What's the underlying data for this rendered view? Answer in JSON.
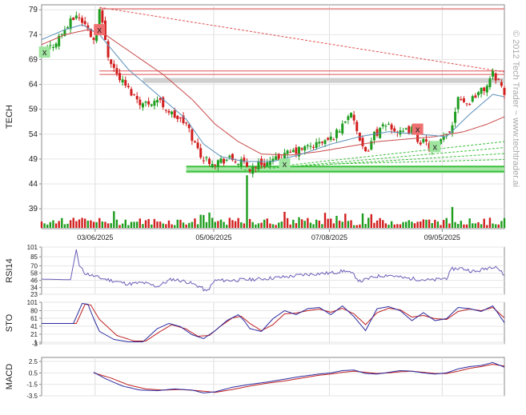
{
  "watermark": "© 2012 Tech Trader ~ www.techtrader.ai",
  "colors": {
    "up": "#1f9d1f",
    "down": "#d21f1f",
    "ma_short": "#5b8fb9",
    "ma_long": "#c84a4a",
    "resistance": "#e05050",
    "support": "#3cc03c",
    "rsi_line": "#6a5fb8",
    "sto_k": "#2a2aa0",
    "sto_d": "#c02020",
    "macd_line": "#2a2aa0",
    "signal_line": "#c02020",
    "sell_marker": "#ef7070",
    "buy_marker": "#9fe59f"
  },
  "chart_data": [
    {
      "type": "candlestick",
      "panel": "price",
      "ylabel": "TECH",
      "ylim": [
        35,
        80
      ],
      "yticks": [
        79,
        74,
        69,
        64,
        59,
        54,
        49,
        44,
        39
      ],
      "x_dates": [
        "03/06/2025",
        "05/06/2025",
        "07/08/2025",
        "09/05/2025"
      ],
      "close_path": [
        [
          0,
          70
        ],
        [
          4,
          72
        ],
        [
          8,
          75
        ],
        [
          12,
          78
        ],
        [
          15,
          76
        ],
        [
          18,
          73
        ],
        [
          20,
          79
        ],
        [
          23,
          70
        ],
        [
          26,
          66
        ],
        [
          30,
          63
        ],
        [
          35,
          60
        ],
        [
          40,
          61
        ],
        [
          45,
          58
        ],
        [
          50,
          56
        ],
        [
          53,
          52
        ],
        [
          56,
          49
        ],
        [
          60,
          48.5
        ],
        [
          65,
          49
        ],
        [
          70,
          48
        ],
        [
          72,
          47
        ],
        [
          75,
          48
        ],
        [
          80,
          48.5
        ],
        [
          85,
          50
        ],
        [
          90,
          51
        ],
        [
          95,
          52
        ],
        [
          100,
          53
        ],
        [
          103,
          55
        ],
        [
          106,
          58
        ],
        [
          108,
          57
        ],
        [
          110,
          52
        ],
        [
          112,
          50
        ],
        [
          115,
          54
        ],
        [
          120,
          56
        ],
        [
          124,
          54
        ],
        [
          128,
          55
        ],
        [
          130,
          53
        ],
        [
          133,
          52
        ],
        [
          136,
          51
        ],
        [
          139,
          53
        ],
        [
          142,
          56
        ],
        [
          144,
          62
        ],
        [
          147,
          60
        ],
        [
          150,
          62
        ],
        [
          153,
          63
        ],
        [
          156,
          66
        ],
        [
          158,
          65
        ],
        [
          160,
          62
        ]
      ],
      "ma_short_path": [
        [
          0,
          73
        ],
        [
          8,
          75
        ],
        [
          14,
          76
        ],
        [
          20,
          74
        ],
        [
          30,
          67
        ],
        [
          40,
          62
        ],
        [
          50,
          57
        ],
        [
          56,
          52
        ],
        [
          62,
          49.5
        ],
        [
          70,
          48.5
        ],
        [
          80,
          48.5
        ],
        [
          90,
          50
        ],
        [
          100,
          52
        ],
        [
          110,
          53.5
        ],
        [
          120,
          54.5
        ],
        [
          130,
          54
        ],
        [
          140,
          53.5
        ],
        [
          148,
          58
        ],
        [
          156,
          62
        ],
        [
          160,
          61.5
        ]
      ],
      "ma_long_path": [
        [
          0,
          72
        ],
        [
          8,
          74
        ],
        [
          16,
          75
        ],
        [
          22,
          74
        ],
        [
          32,
          70
        ],
        [
          42,
          66
        ],
        [
          52,
          61
        ],
        [
          60,
          56
        ],
        [
          68,
          52.5
        ],
        [
          76,
          50
        ],
        [
          86,
          49.8
        ],
        [
          96,
          50.5
        ],
        [
          106,
          51.5
        ],
        [
          116,
          52.5
        ],
        [
          126,
          53
        ],
        [
          136,
          53.5
        ],
        [
          146,
          54.5
        ],
        [
          154,
          56
        ],
        [
          160,
          57.5
        ]
      ],
      "resistance_levels": [
        79.2,
        66.7,
        66.0
      ],
      "resistance_trend": [
        [
          20,
          79.5
        ],
        [
          160,
          66.5
        ]
      ],
      "support_levels": [
        46.5,
        47.5
      ],
      "support_trend": [
        [
          70,
          46.8
        ],
        [
          160,
          52.5
        ]
      ],
      "markers": [
        {
          "type": "sell",
          "label": "x",
          "x": 20,
          "y": 75
        },
        {
          "type": "sell",
          "label": "x",
          "x": 130,
          "y": 55
        },
        {
          "type": "buy",
          "label": "x",
          "x": 1,
          "y": 70.5
        },
        {
          "type": "buy",
          "label": "x",
          "x": 84,
          "y": 48
        },
        {
          "type": "buy",
          "label": "x",
          "x": 136,
          "y": 51.5
        }
      ],
      "volume_max": 1,
      "volume_spike": {
        "x": 71,
        "value": 1
      },
      "volume_bars": [
        {
          "x": 105,
          "value": 0.42,
          "up": false
        },
        {
          "x": 142,
          "value": 0.62,
          "up": true
        }
      ]
    },
    {
      "type": "line",
      "panel": "rsi",
      "ylabel": "RSI14",
      "ylim": [
        23,
        101
      ],
      "yticks": [
        101,
        85,
        70,
        58,
        46,
        34,
        23
      ],
      "series": [
        {
          "values_path": [
            [
              0,
              48
            ],
            [
              10,
              47
            ],
            [
              12,
              97
            ],
            [
              13,
              70
            ],
            [
              15,
              58
            ],
            [
              20,
              50
            ],
            [
              25,
              45
            ],
            [
              30,
              40
            ],
            [
              35,
              42
            ],
            [
              40,
              36
            ],
            [
              45,
              48
            ],
            [
              50,
              44
            ],
            [
              55,
              35
            ],
            [
              57,
              27
            ],
            [
              60,
              46
            ],
            [
              65,
              46
            ],
            [
              70,
              47
            ],
            [
              75,
              48
            ],
            [
              80,
              50
            ],
            [
              85,
              52
            ],
            [
              90,
              55
            ],
            [
              95,
              57
            ],
            [
              100,
              58
            ],
            [
              105,
              62
            ],
            [
              108,
              55
            ],
            [
              110,
              44
            ],
            [
              115,
              52
            ],
            [
              120,
              55
            ],
            [
              125,
              50
            ],
            [
              130,
              48
            ],
            [
              135,
              46
            ],
            [
              140,
              50
            ],
            [
              142,
              65
            ],
            [
              145,
              66
            ],
            [
              150,
              60
            ],
            [
              155,
              68
            ],
            [
              157,
              70
            ],
            [
              160,
              54
            ]
          ]
        }
      ]
    },
    {
      "type": "line",
      "panel": "sto",
      "ylabel": "STO",
      "ylim": [
        -3,
        101
      ],
      "yticks": [
        101,
        80,
        61,
        41,
        21,
        1,
        -3
      ],
      "series": [
        {
          "key": "k",
          "values_path": [
            [
              0,
              48
            ],
            [
              11,
              48
            ],
            [
              14,
              98
            ],
            [
              16,
              96
            ],
            [
              18,
              60
            ],
            [
              20,
              28
            ],
            [
              25,
              8
            ],
            [
              30,
              2
            ],
            [
              35,
              2
            ],
            [
              40,
              35
            ],
            [
              44,
              48
            ],
            [
              48,
              40
            ],
            [
              52,
              20
            ],
            [
              56,
              10
            ],
            [
              60,
              30
            ],
            [
              64,
              55
            ],
            [
              68,
              70
            ],
            [
              70,
              55
            ],
            [
              72,
              35
            ],
            [
              76,
              28
            ],
            [
              80,
              60
            ],
            [
              84,
              80
            ],
            [
              88,
              70
            ],
            [
              92,
              85
            ],
            [
              96,
              88
            ],
            [
              100,
              70
            ],
            [
              104,
              92
            ],
            [
              108,
              65
            ],
            [
              112,
              30
            ],
            [
              116,
              85
            ],
            [
              120,
              90
            ],
            [
              124,
              80
            ],
            [
              128,
              55
            ],
            [
              132,
              75
            ],
            [
              136,
              55
            ],
            [
              140,
              60
            ],
            [
              144,
              88
            ],
            [
              148,
              85
            ],
            [
              152,
              78
            ],
            [
              156,
              92
            ],
            [
              160,
              50
            ]
          ]
        },
        {
          "key": "d",
          "values_path": [
            [
              0,
              48
            ],
            [
              12,
              48
            ],
            [
              15,
              96
            ],
            [
              17,
              94
            ],
            [
              20,
              58
            ],
            [
              26,
              18
            ],
            [
              32,
              4
            ],
            [
              36,
              4
            ],
            [
              41,
              28
            ],
            [
              45,
              45
            ],
            [
              50,
              34
            ],
            [
              54,
              16
            ],
            [
              58,
              18
            ],
            [
              62,
              42
            ],
            [
              66,
              62
            ],
            [
              69,
              66
            ],
            [
              72,
              48
            ],
            [
              76,
              30
            ],
            [
              80,
              45
            ],
            [
              84,
              72
            ],
            [
              88,
              74
            ],
            [
              92,
              80
            ],
            [
              96,
              84
            ],
            [
              100,
              76
            ],
            [
              104,
              86
            ],
            [
              108,
              72
            ],
            [
              112,
              45
            ],
            [
              116,
              75
            ],
            [
              120,
              86
            ],
            [
              124,
              82
            ],
            [
              128,
              64
            ],
            [
              132,
              68
            ],
            [
              136,
              60
            ],
            [
              140,
              58
            ],
            [
              144,
              78
            ],
            [
              148,
              84
            ],
            [
              152,
              80
            ],
            [
              156,
              88
            ],
            [
              160,
              62
            ]
          ]
        }
      ]
    },
    {
      "type": "line",
      "panel": "macd",
      "ylabel": "MACD",
      "ylim": [
        -3.5,
        3.2
      ],
      "yticks": [
        2.5,
        0.5,
        -1.5,
        -3.5
      ],
      "series": [
        {
          "key": "macd",
          "values_path": [
            [
              18,
              0.6
            ],
            [
              22,
              -0.5
            ],
            [
              28,
              -1.8
            ],
            [
              34,
              -2.5
            ],
            [
              40,
              -2.6
            ],
            [
              46,
              -2.3
            ],
            [
              52,
              -2.5
            ],
            [
              56,
              -3.0
            ],
            [
              60,
              -2.8
            ],
            [
              66,
              -2.0
            ],
            [
              72,
              -1.5
            ],
            [
              78,
              -1.1
            ],
            [
              84,
              -0.6
            ],
            [
              90,
              -0.1
            ],
            [
              96,
              0.3
            ],
            [
              100,
              0.5
            ],
            [
              104,
              0.9
            ],
            [
              108,
              1.0
            ],
            [
              112,
              0.4
            ],
            [
              116,
              0.3
            ],
            [
              120,
              0.6
            ],
            [
              124,
              0.9
            ],
            [
              128,
              0.8
            ],
            [
              132,
              0.5
            ],
            [
              136,
              0.3
            ],
            [
              140,
              0.5
            ],
            [
              144,
              1.2
            ],
            [
              148,
              1.6
            ],
            [
              152,
              1.8
            ],
            [
              156,
              2.3
            ],
            [
              160,
              1.5
            ]
          ]
        },
        {
          "key": "signal",
          "values_path": [
            [
              18,
              0.5
            ],
            [
              24,
              -0.4
            ],
            [
              30,
              -1.6
            ],
            [
              36,
              -2.3
            ],
            [
              42,
              -2.5
            ],
            [
              48,
              -2.4
            ],
            [
              54,
              -2.6
            ],
            [
              60,
              -2.9
            ],
            [
              66,
              -2.4
            ],
            [
              72,
              -1.8
            ],
            [
              78,
              -1.3
            ],
            [
              84,
              -0.9
            ],
            [
              90,
              -0.4
            ],
            [
              96,
              0.1
            ],
            [
              100,
              0.3
            ],
            [
              104,
              0.6
            ],
            [
              108,
              0.8
            ],
            [
              112,
              0.6
            ],
            [
              116,
              0.4
            ],
            [
              120,
              0.5
            ],
            [
              124,
              0.7
            ],
            [
              128,
              0.8
            ],
            [
              132,
              0.6
            ],
            [
              136,
              0.4
            ],
            [
              140,
              0.4
            ],
            [
              144,
              0.8
            ],
            [
              148,
              1.3
            ],
            [
              152,
              1.6
            ],
            [
              156,
              2.0
            ],
            [
              160,
              1.7
            ]
          ]
        }
      ]
    }
  ]
}
